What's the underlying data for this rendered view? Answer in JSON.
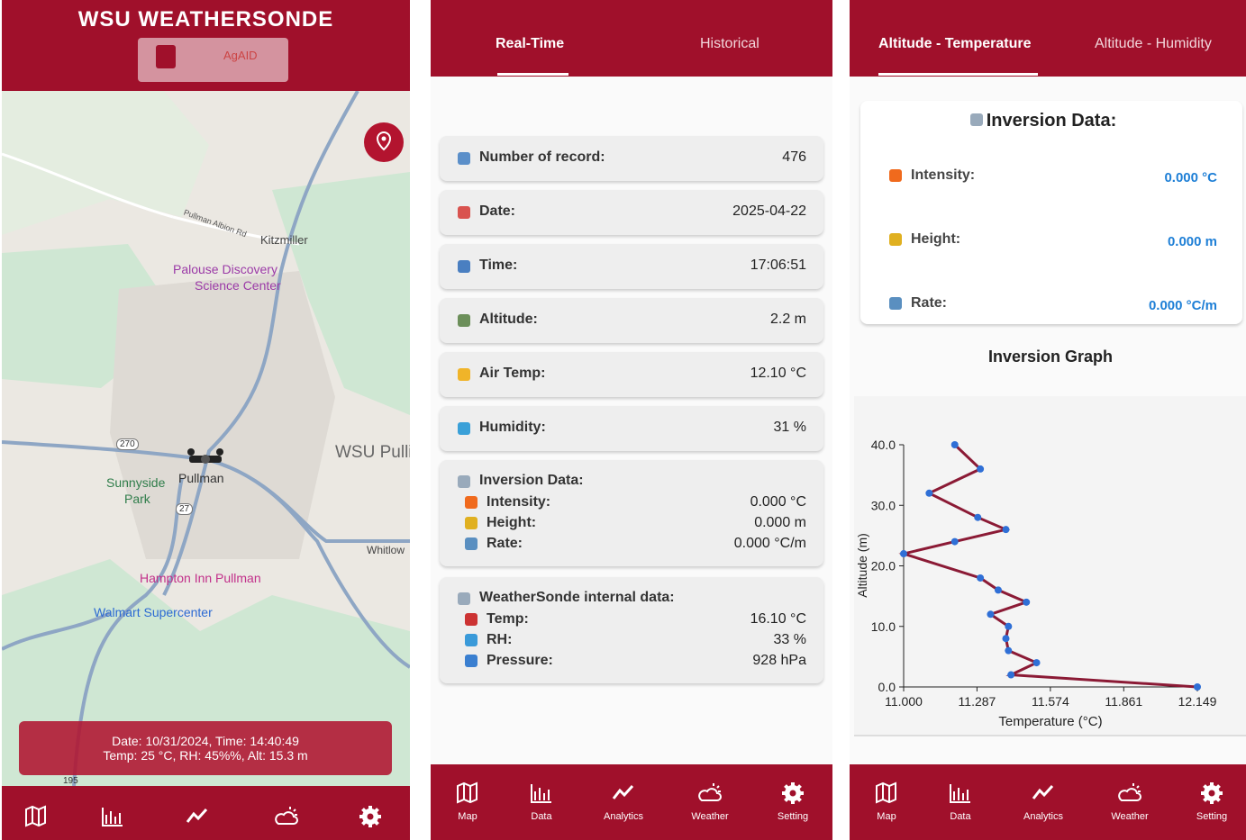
{
  "map_screen": {
    "title": "WSU WEATHERSONDE",
    "logo_text": "AgAID",
    "map_labels": [
      "Pullman Albion Rd",
      "Kitzmiller",
      "Palouse Discovery",
      "Science Center",
      "WSU Pulli",
      "Sunnyside",
      "Park",
      "Pullman",
      "270",
      "27",
      "195",
      "Whitlow",
      "Hampton Inn Pullman",
      "Walmart Supercenter"
    ],
    "overlay": [
      "Date: 10/31/2024, Time: 14:40:49",
      "Temp: 25 °C, RH: 45%%, Alt: 15.3 m"
    ]
  },
  "data_screen": {
    "tabs": [
      "Real-Time",
      "Historical"
    ],
    "rows": [
      {
        "label": "Number of record:",
        "value": "476"
      },
      {
        "label": "Date:",
        "value": "2025-04-22"
      },
      {
        "label": "Time:",
        "value": "17:06:51"
      },
      {
        "label": "Altitude:",
        "value": "2.2 m"
      },
      {
        "label": "Air Temp:",
        "value": "12.10 °C"
      },
      {
        "label": "Humidity:",
        "value": "31 %"
      }
    ],
    "inversion": {
      "title": "Inversion Data:",
      "items": [
        {
          "label": "Intensity:",
          "value": "0.000 °C"
        },
        {
          "label": "Height:",
          "value": "0.000 m"
        },
        {
          "label": "Rate:",
          "value": "0.000 °C/m"
        }
      ]
    },
    "internal": {
      "title": "WeatherSonde internal data:",
      "items": [
        {
          "label": "Temp:",
          "value": "16.10 °C"
        },
        {
          "label": "RH:",
          "value": "33 %"
        },
        {
          "label": "Pressure:",
          "value": "928 hPa"
        }
      ]
    }
  },
  "analytics_screen": {
    "tabs": [
      "Altitude - Temperature",
      "Altitude - Humidity"
    ],
    "inversion": {
      "title": "Inversion Data:",
      "items": [
        {
          "label": "Intensity:",
          "value": "0.000 °C"
        },
        {
          "label": "Height:",
          "value": "0.000 m"
        },
        {
          "label": "Rate:",
          "value": "0.000 °C/m"
        }
      ]
    }
  },
  "nav": [
    "Map",
    "Data",
    "Analytics",
    "Weather",
    "Setting"
  ],
  "chart_data": {
    "type": "line",
    "title": "Inversion Graph",
    "x_label": "Temperature (°C)",
    "y_label": "Altitude (m)",
    "x": [
      12.149,
      11.42,
      11.52,
      11.41,
      11.4,
      11.41,
      11.34,
      11.48,
      11.37,
      11.3,
      11.0,
      11.2,
      11.4,
      11.29,
      11.1,
      11.3,
      11.2
    ],
    "values": [
      0,
      2,
      4,
      6,
      8,
      10,
      12,
      14,
      16,
      18,
      22,
      24,
      26,
      28,
      32,
      36,
      40
    ],
    "color": "#8b1a35",
    "marker_color": "#2f6fd6",
    "xlim": [
      11.0,
      12.149
    ],
    "ylim": [
      0,
      40
    ],
    "xticks": [
      {
        "value": 11.0,
        "label": "11.000"
      },
      {
        "value": 11.287,
        "label": "11.287"
      },
      {
        "value": 11.574,
        "label": "11.574"
      },
      {
        "value": 11.861,
        "label": "11.861"
      },
      {
        "value": 12.149,
        "label": "12.149"
      }
    ],
    "yticks": [
      {
        "value": 0,
        "label": "0.0"
      },
      {
        "value": 10,
        "label": "10.0"
      },
      {
        "value": 20,
        "label": "20.0"
      },
      {
        "value": 30,
        "label": "30.0"
      },
      {
        "value": 40,
        "label": "40.0"
      }
    ]
  }
}
